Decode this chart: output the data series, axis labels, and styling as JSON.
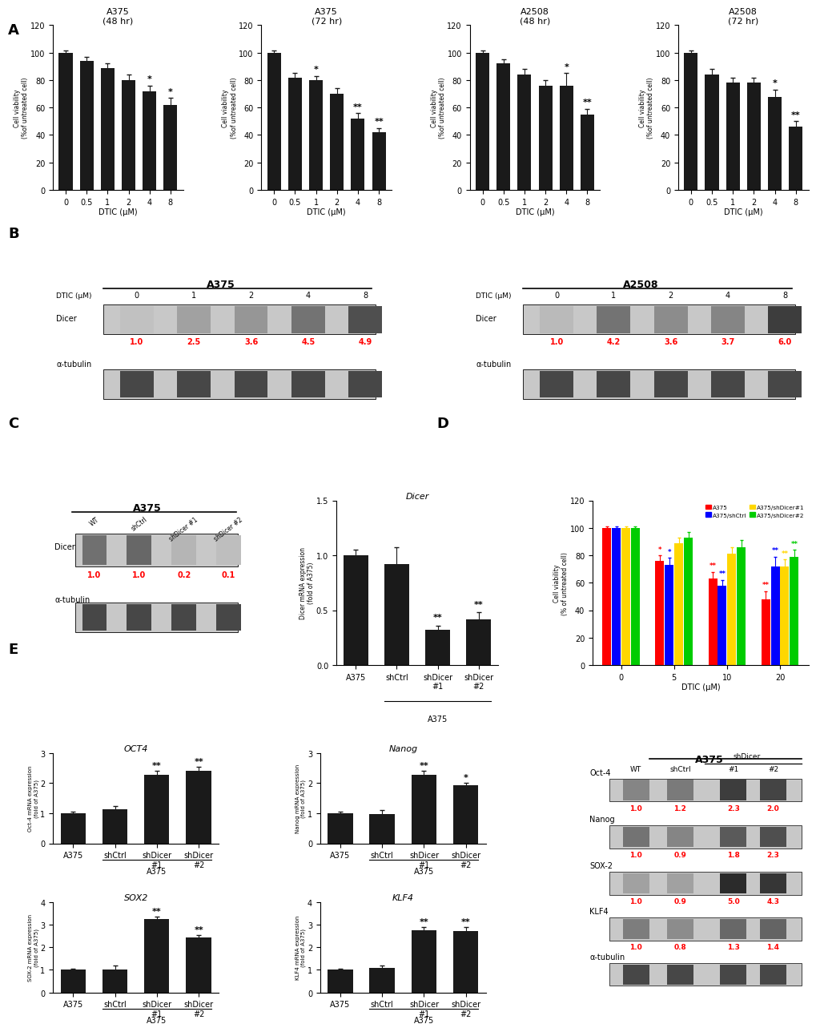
{
  "panel_A": {
    "subpanels": [
      {
        "title": "A375\n(48 hr)",
        "x_labels": [
          "0",
          "0.5",
          "1",
          "2",
          "4",
          "8"
        ],
        "values": [
          100,
          94,
          89,
          80,
          72,
          62
        ],
        "errors": [
          1.5,
          3,
          3,
          4,
          4,
          5
        ],
        "sig": [
          "",
          "",
          "",
          "",
          "*",
          "*"
        ]
      },
      {
        "title": "A375\n(72 hr)",
        "x_labels": [
          "0",
          "0.5",
          "1",
          "2",
          "4",
          "8"
        ],
        "values": [
          100,
          82,
          80,
          70,
          52,
          42
        ],
        "errors": [
          1.5,
          3,
          3,
          4,
          4,
          3
        ],
        "sig": [
          "",
          "",
          "*",
          "",
          "**",
          "**"
        ]
      },
      {
        "title": "A2508\n(48 hr)",
        "x_labels": [
          "0",
          "0.5",
          "1",
          "2",
          "4",
          "8"
        ],
        "values": [
          100,
          92,
          84,
          76,
          76,
          55
        ],
        "errors": [
          1.5,
          3,
          4,
          4,
          9,
          4
        ],
        "sig": [
          "",
          "",
          "",
          "",
          "*",
          "**"
        ]
      },
      {
        "title": "A2508\n(72 hr)",
        "x_labels": [
          "0",
          "0.5",
          "1",
          "2",
          "4",
          "8"
        ],
        "values": [
          100,
          84,
          78,
          78,
          68,
          46
        ],
        "errors": [
          1.5,
          4,
          4,
          4,
          5,
          4
        ],
        "sig": [
          "",
          "",
          "",
          "",
          "*",
          "**"
        ]
      }
    ],
    "ylabel": "Cell viability\n(%of untreated cell)",
    "xlabel": "DTIC (μM)",
    "ylim": [
      0,
      120
    ],
    "yticks": [
      0,
      20,
      40,
      60,
      80,
      100,
      120
    ]
  },
  "panel_B": {
    "panels": [
      {
        "title": "A375",
        "dtic": [
          "0",
          "1",
          "2",
          "4",
          "8"
        ],
        "dicer_intensities": [
          0.3,
          1.2,
          1.5,
          2.5,
          3.5
        ],
        "numbers": [
          "1.0",
          "2.5",
          "3.6",
          "4.5",
          "4.9"
        ]
      },
      {
        "title": "A2508",
        "dtic": [
          "0",
          "1",
          "2",
          "4",
          "8"
        ],
        "dicer_intensities": [
          0.5,
          2.5,
          1.8,
          2.0,
          4.0
        ],
        "numbers": [
          "1.0",
          "4.2",
          "3.6",
          "3.7",
          "6.0"
        ]
      }
    ]
  },
  "panel_C_wb": {
    "title": "A375",
    "lanes": [
      "WT",
      "shCtrl",
      "shDicer #1",
      "shDicer #2"
    ],
    "dicer_intensities": [
      2.0,
      2.2,
      0.5,
      0.3
    ],
    "numbers": [
      "1.0",
      "1.0",
      "0.2",
      "0.1"
    ]
  },
  "panel_C_bar": {
    "title": "Dicer",
    "x_labels": [
      "A375",
      "shCtrl",
      "shDicer\n#1",
      "shDicer\n#2"
    ],
    "values": [
      1.0,
      0.92,
      0.32,
      0.42
    ],
    "errors": [
      0.05,
      0.15,
      0.04,
      0.06
    ],
    "sig": [
      "",
      "",
      "**",
      "**"
    ],
    "ylabel": "Dicer mRNA expression\n(fold of A375)",
    "ylim": [
      0,
      1.5
    ],
    "yticks": [
      0.0,
      0.5,
      1.0,
      1.5
    ]
  },
  "panel_D": {
    "groups": [
      "0",
      "5",
      "10",
      "20"
    ],
    "series": [
      {
        "label": "A375",
        "color": "#FF0000",
        "values": [
          100,
          76,
          63,
          48
        ],
        "errors": [
          1,
          4,
          5,
          6
        ]
      },
      {
        "label": "A375/shCtrl",
        "color": "#0000FF",
        "values": [
          100,
          73,
          58,
          72
        ],
        "errors": [
          1,
          5,
          4,
          7
        ]
      },
      {
        "label": "A375/shDicer#1",
        "color": "#FFD700",
        "values": [
          100,
          89,
          81,
          72
        ],
        "errors": [
          1,
          4,
          5,
          5
        ]
      },
      {
        "label": "A375/shDicer#2",
        "color": "#00CC00",
        "values": [
          100,
          93,
          86,
          79
        ],
        "errors": [
          1,
          4,
          5,
          5
        ]
      }
    ],
    "sig_by_group": [
      [
        "",
        "",
        "",
        ""
      ],
      [
        "*",
        "*",
        "",
        ""
      ],
      [
        "**",
        "**",
        "",
        ""
      ],
      [
        "**",
        "**",
        "**",
        "**"
      ]
    ],
    "ylabel": "Cell viability\n(% of untreated cell)",
    "xlabel": "DTIC (μM)",
    "ylim": [
      0,
      120
    ],
    "yticks": [
      0,
      20,
      40,
      60,
      80,
      100,
      120
    ]
  },
  "panel_E_bars": [
    {
      "title": "OCT4",
      "x_labels": [
        "A375",
        "shCtrl",
        "shDicer\n#1",
        "shDicer\n#2"
      ],
      "values": [
        1.0,
        1.12,
        2.28,
        2.42
      ],
      "errors": [
        0.05,
        0.12,
        0.12,
        0.12
      ],
      "sig": [
        "",
        "",
        "**",
        "**"
      ],
      "ylabel": "Oct-4 mRNA expression\n(fold of A375)",
      "ylim": [
        0,
        3
      ],
      "yticks": [
        0,
        1,
        2,
        3
      ]
    },
    {
      "title": "Nanog",
      "x_labels": [
        "A375",
        "shCtrl",
        "shDicer\n#1",
        "shDicer\n#2"
      ],
      "values": [
        1.0,
        0.96,
        2.28,
        1.92
      ],
      "errors": [
        0.05,
        0.15,
        0.12,
        0.08
      ],
      "sig": [
        "",
        "",
        "**",
        "*"
      ],
      "ylabel": "Nanog mRNA expression\n(fold of A375)",
      "ylim": [
        0,
        3
      ],
      "yticks": [
        0,
        1,
        2,
        3
      ]
    },
    {
      "title": "SOX2",
      "x_labels": [
        "A375",
        "shCtrl",
        "shDicer\n#1",
        "shDicer\n#2"
      ],
      "values": [
        1.0,
        1.0,
        3.25,
        2.42
      ],
      "errors": [
        0.05,
        0.18,
        0.12,
        0.12
      ],
      "sig": [
        "",
        "",
        "**",
        "**"
      ],
      "ylabel": "SOX-2 mRNA expression\n(fold of A375)",
      "ylim": [
        0,
        4
      ],
      "yticks": [
        0,
        1,
        2,
        3,
        4
      ]
    },
    {
      "title": "KLF4",
      "x_labels": [
        "A375",
        "shCtrl",
        "shDicer\n#1",
        "shDicer\n#2"
      ],
      "values": [
        1.0,
        1.1,
        2.75,
        2.72
      ],
      "errors": [
        0.05,
        0.08,
        0.14,
        0.18
      ],
      "sig": [
        "",
        "",
        "**",
        "**"
      ],
      "ylabel": "KLF4 mRNA expression\n(fold of A375)",
      "ylim": [
        0,
        4
      ],
      "yticks": [
        0,
        1,
        2,
        3,
        4
      ]
    }
  ],
  "panel_E_wb": {
    "title": "A375",
    "lanes": [
      "WT",
      "shCtrl",
      "#1",
      "#2"
    ],
    "proteins": [
      {
        "name": "Oct-4",
        "intensities": [
          2.0,
          2.3,
          4.0,
          3.8
        ],
        "numbers": [
          "1.0",
          "1.2",
          "2.3",
          "2.0"
        ]
      },
      {
        "name": "Nanog",
        "intensities": [
          2.5,
          2.0,
          3.2,
          3.5
        ],
        "numbers": [
          "1.0",
          "0.9",
          "1.8",
          "2.3"
        ]
      },
      {
        "name": "SOX-2",
        "intensities": [
          1.2,
          1.2,
          4.5,
          4.2
        ],
        "numbers": [
          "1.0",
          "0.9",
          "5.0",
          "4.3"
        ]
      },
      {
        "name": "KLF4",
        "intensities": [
          2.2,
          1.8,
          2.8,
          2.9
        ],
        "numbers": [
          "1.0",
          "0.8",
          "1.3",
          "1.4"
        ]
      }
    ]
  },
  "bar_color": "#1a1a1a",
  "error_color": "#1a1a1a",
  "font_size_title": 8,
  "font_size_label": 7,
  "font_size_tick": 7,
  "font_size_sig": 8
}
